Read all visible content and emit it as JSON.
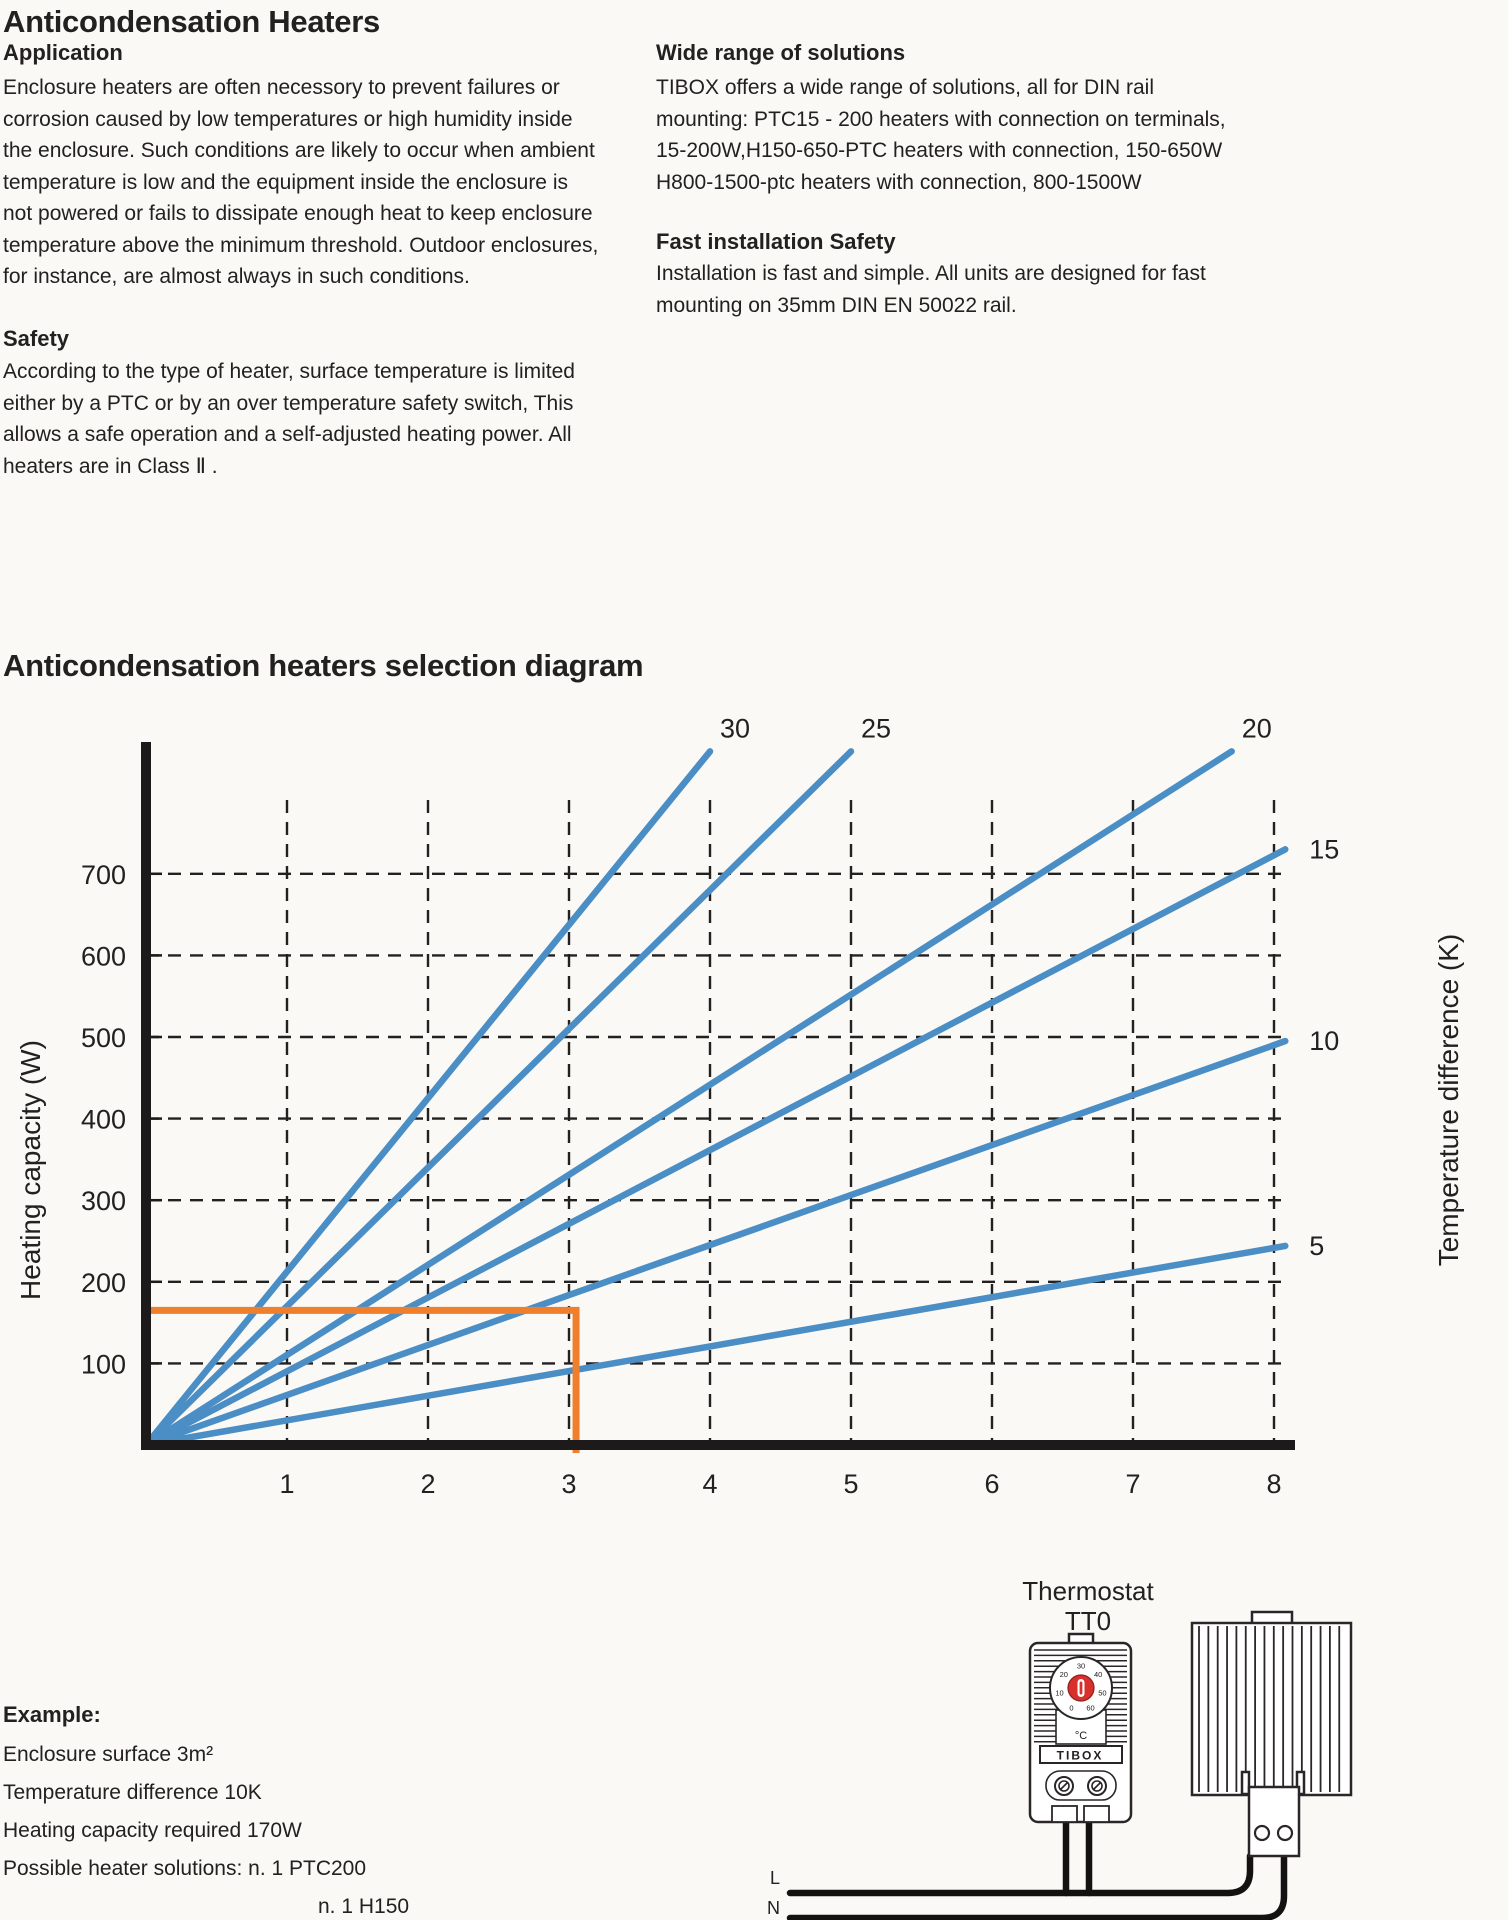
{
  "page": {
    "title": "Anticondensation Heaters"
  },
  "sections": {
    "application": {
      "heading": "Application",
      "lines": [
        "Enclosure heaters are often necessory to prevent failures or",
        "corrosion caused by low temperatures or high humidity inside",
        "the enclosure. Such conditions are likely to occur when ambient",
        "temperature is low and the equipment inside the enclosure is",
        "not powered or fails to dissipate enough heat to keep enclosure",
        "temperature above the minimum threshold. Outdoor enclosures,",
        "for instance, are almost always in such conditions."
      ]
    },
    "safety": {
      "heading": "Safety",
      "lines": [
        "According to the type of heater, surface temperature is limited",
        "either by a PTC or by an over temperature safety switch, This",
        "allows a safe operation and a self-adjusted heating power. All",
        "heaters are in Class Ⅱ ."
      ]
    },
    "wide_range": {
      "heading": "Wide range of solutions",
      "lines": [
        "TIBOX offers a wide range of solutions, all for DIN rail",
        "mounting: PTC15 - 200 heaters with connection on terminals,",
        "15-200W,H150-650-PTC heaters with connection, 150-650W",
        "H800-1500-ptc heaters with connection, 800-1500W"
      ]
    },
    "fast_install": {
      "heading": "Fast installation Safety",
      "lines": [
        "Installation is fast and simple. All units are designed for fast",
        "mounting on 35mm DIN EN 50022 rail."
      ]
    }
  },
  "diagram": {
    "title": "Anticondensation heaters selection diagram"
  },
  "chart_data": {
    "type": "line",
    "title": "Anticondensation heaters selection diagram",
    "xlabel": "",
    "ylabel_left": "Heating capacity (W)",
    "ylabel_right": "Temperature difference (K)",
    "x_ticks": [
      1,
      2,
      3,
      4,
      5,
      6,
      7,
      8
    ],
    "y_ticks": [
      100,
      200,
      300,
      400,
      500,
      600,
      700
    ],
    "xlim": [
      0,
      8.5
    ],
    "ylim": [
      0,
      880
    ],
    "grid": "dashed",
    "line_color": "#4a8ec5",
    "series": [
      {
        "name": "dT30",
        "label": "30",
        "label_pos": "top",
        "points": [
          [
            0,
            0
          ],
          [
            4.0,
            850
          ]
        ]
      },
      {
        "name": "dT25",
        "label": "25",
        "label_pos": "top",
        "points": [
          [
            0,
            0
          ],
          [
            5.0,
            850
          ]
        ]
      },
      {
        "name": "dT20",
        "label": "20",
        "label_pos": "top",
        "points": [
          [
            0,
            0
          ],
          [
            7.7,
            850
          ]
        ]
      },
      {
        "name": "dT15",
        "label": "15",
        "label_pos": "right",
        "points": [
          [
            0,
            0
          ],
          [
            8.08,
            730
          ]
        ]
      },
      {
        "name": "dT10",
        "label": "10",
        "label_pos": "right",
        "points": [
          [
            0,
            0
          ],
          [
            8.08,
            495
          ]
        ]
      },
      {
        "name": "dT5",
        "label": "5",
        "label_pos": "right",
        "points": [
          [
            0,
            0
          ],
          [
            8.08,
            244
          ]
        ]
      }
    ],
    "annotation": {
      "color": "#ef7f2d",
      "capacity_w": 165,
      "surface_m2": 3.05
    }
  },
  "example": {
    "heading": "Example:",
    "lines": [
      "Enclosure surface 3m²",
      "Temperature difference 10K",
      "Heating capacity required 170W",
      "Possible heater solutions: n. 1 PTC200"
    ],
    "last_line": "n. 1 H150"
  },
  "illustration": {
    "label_line1": "Thermostat",
    "label_line2": "TT0",
    "brand": "TIBOX",
    "dial_scale": [
      0,
      10,
      20,
      30,
      40,
      50,
      60
    ],
    "dial_unit": "°C",
    "dial_knob_color": "#d8302c",
    "wire_labels": {
      "l": "L",
      "n": "N"
    }
  },
  "colors": {
    "background": "#faf9f6",
    "text": "#232020",
    "curve_blue": "#4a8ec5",
    "annotation_orange": "#ef7f2d",
    "knob_red": "#d8302c"
  }
}
